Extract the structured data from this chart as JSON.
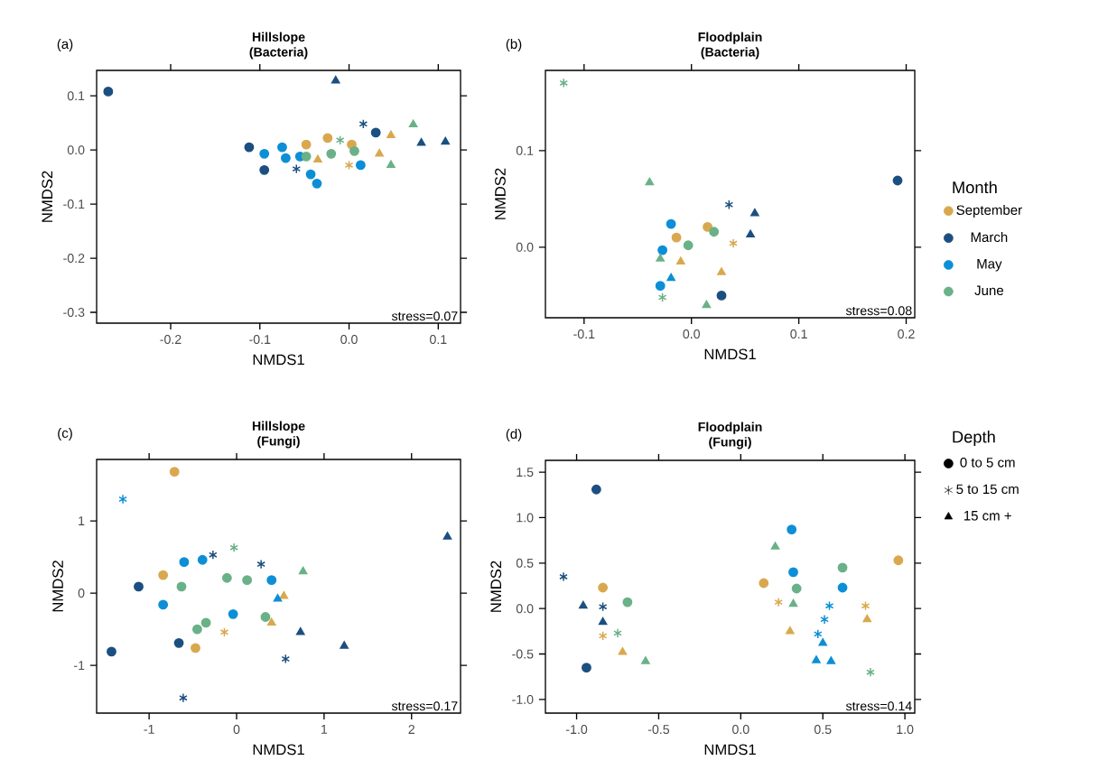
{
  "chart_data": [
    {
      "type": "scatter",
      "title": "Hillslope (Bacteria)",
      "xlabel": "NMDS1",
      "ylabel": "NMDS2",
      "xlim": [
        -0.283,
        0.125
      ],
      "ylim": [
        -0.32,
        0.147
      ],
      "xticks": [
        -0.2,
        -0.1,
        {
          "value": 0,
          "label": "0.0"
        },
        0.1
      ],
      "yticks": [
        0.1,
        {
          "value": 0,
          "label": "0.0"
        },
        -0.1,
        -0.2,
        -0.3
      ],
      "annotations": [
        "(a)",
        "stress=0.07"
      ],
      "series": [
        {
          "color": "#d9a84e",
          "marker": "circle",
          "x": [
            -0.048,
            -0.024,
            0.003
          ],
          "values": [
            0.01,
            0.022,
            0.01
          ]
        },
        {
          "color": "#d9a84e",
          "marker": "cross",
          "x": [
            0.0
          ],
          "values": [
            -0.028
          ]
        },
        {
          "color": "#d9a84e",
          "marker": "triangle",
          "x": [
            0.047,
            0.034,
            -0.035
          ],
          "values": [
            0.027,
            -0.007,
            -0.018
          ]
        },
        {
          "color": "#1b4f80",
          "marker": "circle",
          "x": [
            -0.27,
            -0.112,
            -0.095,
            0.03
          ],
          "values": [
            0.108,
            0.005,
            -0.037,
            0.032
          ]
        },
        {
          "color": "#1b4f80",
          "marker": "cross",
          "x": [
            0.016,
            -0.059
          ],
          "values": [
            0.048,
            -0.035
          ]
        },
        {
          "color": "#1b4f80",
          "marker": "triangle",
          "x": [
            -0.015,
            0.108,
            0.081
          ],
          "values": [
            0.128,
            0.015,
            0.013
          ]
        },
        {
          "color": "#0c8fd6",
          "marker": "circle",
          "x": [
            -0.095,
            -0.075,
            -0.055,
            -0.036,
            -0.043,
            -0.071,
            0.013
          ],
          "values": [
            -0.007,
            0.005,
            -0.012,
            -0.062,
            -0.045,
            -0.015,
            -0.028
          ]
        },
        {
          "color": "#6ab187",
          "marker": "circle",
          "x": [
            -0.02,
            0.006,
            -0.048
          ],
          "values": [
            -0.007,
            -0.002,
            -0.012
          ]
        },
        {
          "color": "#6ab187",
          "marker": "cross",
          "x": [
            -0.01
          ],
          "values": [
            0.018
          ]
        },
        {
          "color": "#6ab187",
          "marker": "triangle",
          "x": [
            0.072,
            0.047
          ],
          "values": [
            0.047,
            -0.028
          ]
        }
      ]
    },
    {
      "type": "scatter",
      "title": "Floodplain (Bacteria)",
      "xlabel": "NMDS1",
      "ylabel": "NMDS2",
      "xlim": [
        -0.136,
        0.208
      ],
      "ylim": [
        -0.073,
        0.183
      ],
      "xticks": [
        -0.1,
        {
          "value": 0,
          "label": "0.0"
        },
        0.1,
        0.2
      ],
      "yticks": [
        {
          "value": 0,
          "label": "0.0"
        },
        0.1
      ],
      "annotations": [
        "(b)",
        "stress=0.08"
      ],
      "series": [
        {
          "color": "#d9a84e",
          "marker": "circle",
          "x": [
            0.015,
            -0.014
          ],
          "values": [
            0.021,
            0.01
          ]
        },
        {
          "color": "#d9a84e",
          "marker": "cross",
          "x": [
            0.039
          ],
          "values": [
            0.004
          ]
        },
        {
          "color": "#d9a84e",
          "marker": "triangle",
          "x": [
            0.028,
            -0.01
          ],
          "values": [
            -0.026,
            -0.015
          ]
        },
        {
          "color": "#1b4f80",
          "marker": "circle",
          "x": [
            0.192,
            0.028
          ],
          "values": [
            0.069,
            -0.05
          ]
        },
        {
          "color": "#1b4f80",
          "marker": "cross",
          "x": [
            0.035
          ],
          "values": [
            0.044
          ]
        },
        {
          "color": "#1b4f80",
          "marker": "triangle",
          "x": [
            0.059,
            0.055
          ],
          "values": [
            0.035,
            0.013
          ]
        },
        {
          "color": "#0c8fd6",
          "marker": "circle",
          "x": [
            -0.019,
            -0.029,
            -0.027
          ],
          "values": [
            0.024,
            -0.04,
            -0.003
          ]
        },
        {
          "color": "#0c8fd6",
          "marker": "triangle",
          "x": [
            -0.019
          ],
          "values": [
            -0.032
          ]
        },
        {
          "color": "#6ab187",
          "marker": "circle",
          "x": [
            -0.003,
            0.021
          ],
          "values": [
            0.002,
            0.016
          ]
        },
        {
          "color": "#6ab187",
          "marker": "cross",
          "x": [
            -0.119,
            -0.027
          ],
          "values": [
            0.17,
            -0.052
          ]
        },
        {
          "color": "#6ab187",
          "marker": "triangle",
          "x": [
            -0.039,
            0.014,
            -0.029
          ],
          "values": [
            0.067,
            -0.06,
            -0.012
          ]
        }
      ]
    },
    {
      "type": "scatter",
      "title": "Hillslope (Fungi)",
      "xlabel": "NMDS1",
      "ylabel": "NMDS2",
      "xlim": [
        -1.6,
        2.56
      ],
      "ylim": [
        -1.66,
        1.85
      ],
      "xticks": [
        -1,
        0,
        1,
        2
      ],
      "yticks": [
        -1,
        0,
        1
      ],
      "annotations": [
        "(c)",
        "stress=0.17"
      ],
      "series": [
        {
          "color": "#d9a84e",
          "marker": "circle",
          "x": [
            -0.71,
            -0.84,
            -0.47
          ],
          "values": [
            1.68,
            0.25,
            -0.76
          ]
        },
        {
          "color": "#d9a84e",
          "marker": "cross",
          "x": [
            -0.14
          ],
          "values": [
            -0.54
          ]
        },
        {
          "color": "#d9a84e",
          "marker": "triangle",
          "x": [
            0.4,
            0.54
          ],
          "values": [
            -0.41,
            -0.04
          ]
        },
        {
          "color": "#1b4f80",
          "marker": "circle",
          "x": [
            -1.12,
            -1.43,
            -0.66
          ],
          "values": [
            0.09,
            -0.81,
            -0.69
          ]
        },
        {
          "color": "#1b4f80",
          "marker": "cross",
          "x": [
            -0.61,
            0.56,
            -0.27,
            0.28
          ],
          "values": [
            -1.45,
            -0.91,
            0.53,
            0.4
          ]
        },
        {
          "color": "#1b4f80",
          "marker": "triangle",
          "x": [
            2.41,
            1.23,
            0.73
          ],
          "values": [
            0.78,
            -0.73,
            -0.54
          ]
        },
        {
          "color": "#0c8fd6",
          "marker": "circle",
          "x": [
            -0.6,
            -0.84,
            -0.39,
            0.4,
            -0.04
          ],
          "values": [
            0.43,
            -0.16,
            0.46,
            0.18,
            -0.29
          ]
        },
        {
          "color": "#0c8fd6",
          "marker": "cross",
          "x": [
            -1.3
          ],
          "values": [
            1.3
          ]
        },
        {
          "color": "#0c8fd6",
          "marker": "triangle",
          "x": [
            0.47
          ],
          "values": [
            -0.08
          ]
        },
        {
          "color": "#6ab187",
          "marker": "circle",
          "x": [
            -0.63,
            -0.35,
            -0.11,
            0.12,
            0.33,
            -0.45
          ],
          "values": [
            0.09,
            -0.41,
            0.21,
            0.18,
            -0.33,
            -0.5
          ]
        },
        {
          "color": "#6ab187",
          "marker": "cross",
          "x": [
            -0.03
          ],
          "values": [
            0.63
          ]
        },
        {
          "color": "#6ab187",
          "marker": "triangle",
          "x": [
            0.76
          ],
          "values": [
            0.3
          ]
        }
      ]
    },
    {
      "type": "scatter",
      "title": "Floodplain (Fungi)",
      "xlabel": "NMDS1",
      "ylabel": "NMDS2",
      "xlim": [
        -1.19,
        1.06
      ],
      "ylim": [
        -1.15,
        1.63
      ],
      "xticks": [
        {
          "value": -1,
          "label": "-1.0"
        },
        -0.5,
        {
          "value": 0,
          "label": "0.0"
        },
        0.5,
        {
          "value": 1,
          "label": "1.0"
        }
      ],
      "yticks": [
        {
          "value": -1,
          "label": "-1.0"
        },
        -0.5,
        {
          "value": 0,
          "label": "0.0"
        },
        0.5,
        {
          "value": 1,
          "label": "1.0"
        },
        1.5
      ],
      "annotations": [
        "(d)",
        "stress=0.14"
      ],
      "series": [
        {
          "color": "#d9a84e",
          "marker": "circle",
          "x": [
            -0.84,
            0.96,
            0.14
          ],
          "values": [
            0.23,
            0.53,
            0.28
          ]
        },
        {
          "color": "#d9a84e",
          "marker": "cross",
          "x": [
            -0.84,
            0.23,
            0.76
          ],
          "values": [
            -0.3,
            0.07,
            0.03
          ]
        },
        {
          "color": "#d9a84e",
          "marker": "triangle",
          "x": [
            -0.72,
            0.3,
            0.77
          ],
          "values": [
            -0.48,
            -0.25,
            -0.12
          ]
        },
        {
          "color": "#1b4f80",
          "marker": "circle",
          "x": [
            -0.88,
            -0.94
          ],
          "values": [
            1.31,
            -0.65
          ]
        },
        {
          "color": "#1b4f80",
          "marker": "cross",
          "x": [
            -1.08,
            -0.84
          ],
          "values": [
            0.35,
            0.02
          ]
        },
        {
          "color": "#1b4f80",
          "marker": "triangle",
          "x": [
            -0.96,
            -0.84
          ],
          "values": [
            0.03,
            -0.15
          ]
        },
        {
          "color": "#0c8fd6",
          "marker": "circle",
          "x": [
            0.31,
            0.32,
            0.62
          ],
          "values": [
            0.87,
            0.4,
            0.23
          ]
        },
        {
          "color": "#0c8fd6",
          "marker": "cross",
          "x": [
            0.54,
            0.47,
            0.51
          ],
          "values": [
            0.03,
            -0.28,
            -0.12
          ]
        },
        {
          "color": "#0c8fd6",
          "marker": "triangle",
          "x": [
            0.46,
            0.55,
            0.5
          ],
          "values": [
            -0.57,
            -0.58,
            -0.38
          ]
        },
        {
          "color": "#6ab187",
          "marker": "circle",
          "x": [
            -0.69,
            0.62,
            0.34
          ],
          "values": [
            0.07,
            0.45,
            0.22
          ]
        },
        {
          "color": "#6ab187",
          "marker": "cross",
          "x": [
            -0.75,
            0.79
          ],
          "values": [
            -0.27,
            -0.7
          ]
        },
        {
          "color": "#6ab187",
          "marker": "triangle",
          "x": [
            0.21,
            -0.58,
            0.32
          ],
          "values": [
            0.68,
            -0.58,
            0.05
          ]
        }
      ]
    },
    {
      "type": "other",
      "legend_title": "Month",
      "series": [
        {
          "name": "September",
          "color": "#d9a84e"
        },
        {
          "name": "March",
          "color": "#1b4f80"
        },
        {
          "name": "May",
          "color": "#0c8fd6"
        },
        {
          "name": "June",
          "color": "#6ab187"
        }
      ]
    },
    {
      "type": "other",
      "legend_title": "Depth",
      "series": [
        {
          "name": "0 to 5 cm",
          "color": "#000000",
          "marker": "circle"
        },
        {
          "name": "5 to 15 cm",
          "color": "#000000",
          "marker": "cross"
        },
        {
          "name": "15 cm +",
          "color": "#000000",
          "marker": "triangle"
        }
      ]
    }
  ]
}
